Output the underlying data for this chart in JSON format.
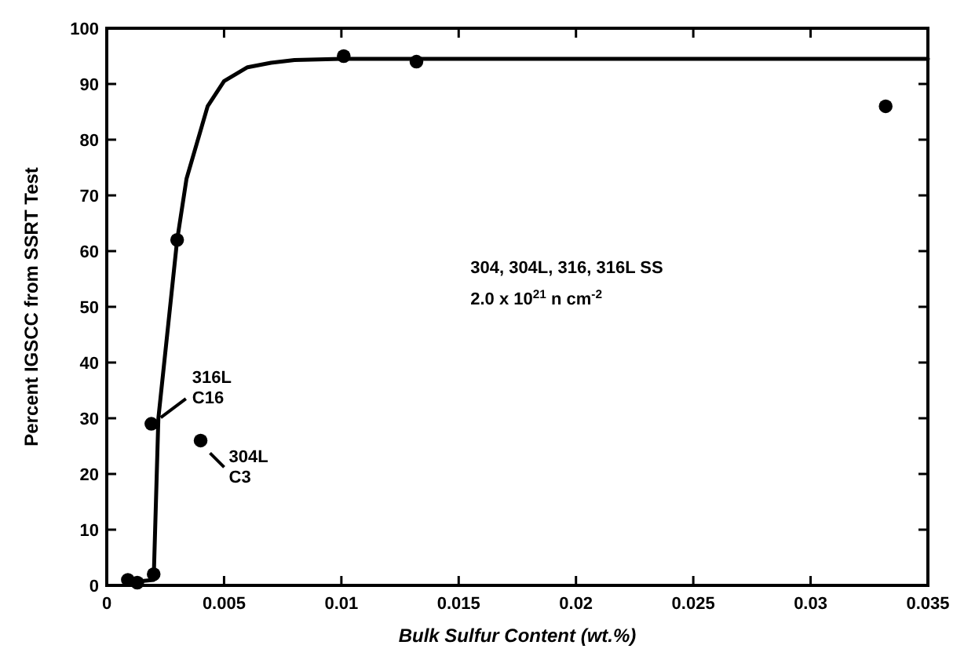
{
  "chart_data": {
    "type": "scatter",
    "xlabel": "Bulk Sulfur Content (wt.%)",
    "ylabel": "Percent IGSCC from SSRT Test",
    "xlim": [
      0,
      0.035
    ],
    "ylim": [
      0,
      100
    ],
    "xticks": [
      0,
      0.005,
      0.01,
      0.015,
      0.02,
      0.025,
      0.03,
      0.035
    ],
    "yticks": [
      0,
      10,
      20,
      30,
      40,
      50,
      60,
      70,
      80,
      90,
      100
    ],
    "grid": false,
    "marker": "circle",
    "series": [
      {
        "type": "scatter",
        "color": "#000000",
        "x": [
          0.0009,
          0.0013,
          0.002,
          0.0019,
          0.003,
          0.004,
          0.0101,
          0.0132,
          0.0332
        ],
        "values": [
          1,
          0.5,
          2,
          29,
          62,
          26,
          95,
          94,
          86
        ]
      },
      {
        "type": "line",
        "color": "#000000",
        "line_style": "solid",
        "marker": "none",
        "x": [
          0.0008,
          0.002,
          0.0022,
          0.003,
          0.0034,
          0.0043,
          0.005,
          0.006,
          0.007,
          0.008,
          0.01,
          0.02,
          0.035
        ],
        "values": [
          0.5,
          1,
          30,
          62,
          73,
          86,
          90.5,
          93,
          93.8,
          94.3,
          94.5,
          94.5,
          94.5
        ]
      }
    ],
    "annotations": [
      {
        "text": "316L\nC16",
        "x": 0.0019,
        "y": 29
      },
      {
        "text": "304L\nC3",
        "x": 0.004,
        "y": 26
      },
      "304, 304L, 316, 316L SS",
      "2.0 x 10$^{21}$ n cm$^{-2}$"
    ]
  }
}
